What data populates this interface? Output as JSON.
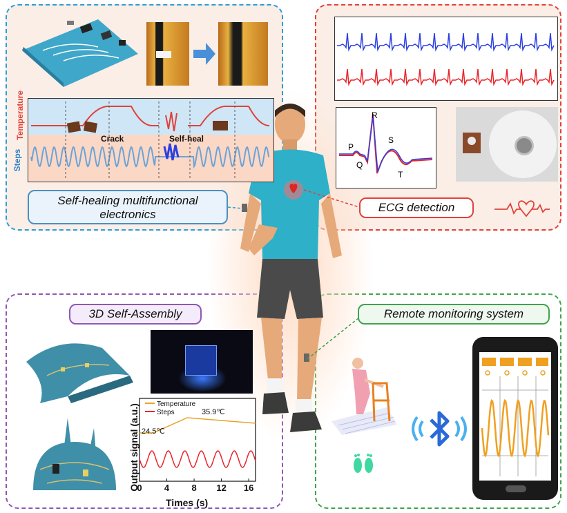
{
  "panels": {
    "self_healing": {
      "title_line1": "Self-healing multifunctional",
      "title_line2": "electronics",
      "axis_temperature": "Temperature",
      "axis_steps": "Steps",
      "annotation_crack": "Crack",
      "annotation_self_heal": "Self-heal"
    },
    "ecg": {
      "title": "ECG detection",
      "wave_labels": [
        "P",
        "Q",
        "R",
        "S",
        "T"
      ]
    },
    "self_assembly": {
      "title": "3D Self-Assembly"
    },
    "remote": {
      "title": "Remote monitoring system"
    }
  },
  "chart_data": {
    "type": "line",
    "xlabel": "Times (s)",
    "ylabel": "Output signal (a.u.)",
    "xticks": [
      0,
      4,
      8,
      12,
      16
    ],
    "xlim": [
      0,
      17
    ],
    "series": [
      {
        "name": "Temperature",
        "color": "#e6a52a"
      },
      {
        "name": "Steps",
        "color": "#e8252a"
      }
    ],
    "annotations": [
      "24.5℃",
      "35.9℃"
    ]
  },
  "colors": {
    "blue_border": "#2a9fd6",
    "red_border": "#e0413a",
    "purple_border": "#8e57b5",
    "green_border": "#3fa34d",
    "ecg_blue": "#2b3fe0",
    "ecg_red": "#e8252a",
    "phone_wave": "#f0a020"
  },
  "icons": [
    "heart-ecg-icon",
    "bluetooth-icon",
    "footprints-icon",
    "person-with-walker-icon",
    "smartphone-icon"
  ]
}
